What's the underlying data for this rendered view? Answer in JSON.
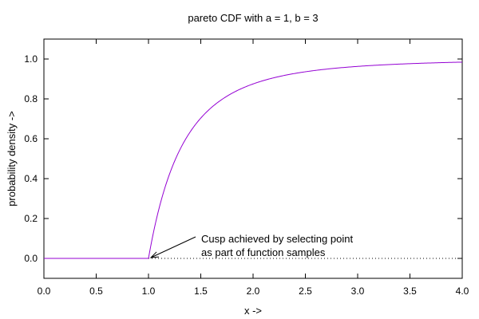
{
  "chart_data": {
    "type": "line",
    "title": "pareto CDF with a = 1, b = 3",
    "xlabel": "x ->",
    "ylabel": "probability density ->",
    "xlim": [
      0.0,
      4.0
    ],
    "ylim": [
      -0.1,
      1.1
    ],
    "xticks": [
      "0.0",
      "0.5",
      "1.0",
      "1.5",
      "2.0",
      "2.5",
      "3.0",
      "3.5",
      "4.0"
    ],
    "yticks": [
      "0.0",
      "0.2",
      "0.4",
      "0.6",
      "0.8",
      "1.0"
    ],
    "xtick_values": [
      0.0,
      0.5,
      1.0,
      1.5,
      2.0,
      2.5,
      3.0,
      3.5,
      4.0
    ],
    "ytick_values": [
      0.0,
      0.2,
      0.4,
      0.6,
      0.8,
      1.0
    ],
    "grid": false,
    "zero_line": "dotted",
    "series": [
      {
        "color": "#9400d3",
        "x": [
          0.0,
          0.5,
          1.0,
          1.05,
          1.1,
          1.15,
          1.2,
          1.25,
          1.3,
          1.4,
          1.5,
          1.6,
          1.75,
          2.0,
          2.25,
          2.5,
          2.75,
          3.0,
          3.25,
          3.5,
          3.75,
          4.0
        ],
        "y": [
          0.0,
          0.0,
          0.0,
          0.1362,
          0.2487,
          0.3425,
          0.4213,
          0.488,
          0.5448,
          0.6356,
          0.7037,
          0.7559,
          0.8134,
          0.875,
          0.9122,
          0.936,
          0.952,
          0.963,
          0.9709,
          0.9767,
          0.981,
          0.9844
        ]
      }
    ],
    "annotation": {
      "text_line1": "Cusp achieved by selecting point",
      "text_line2": "as part of function samples",
      "point_x": 1.0,
      "point_y": 0.0
    }
  }
}
